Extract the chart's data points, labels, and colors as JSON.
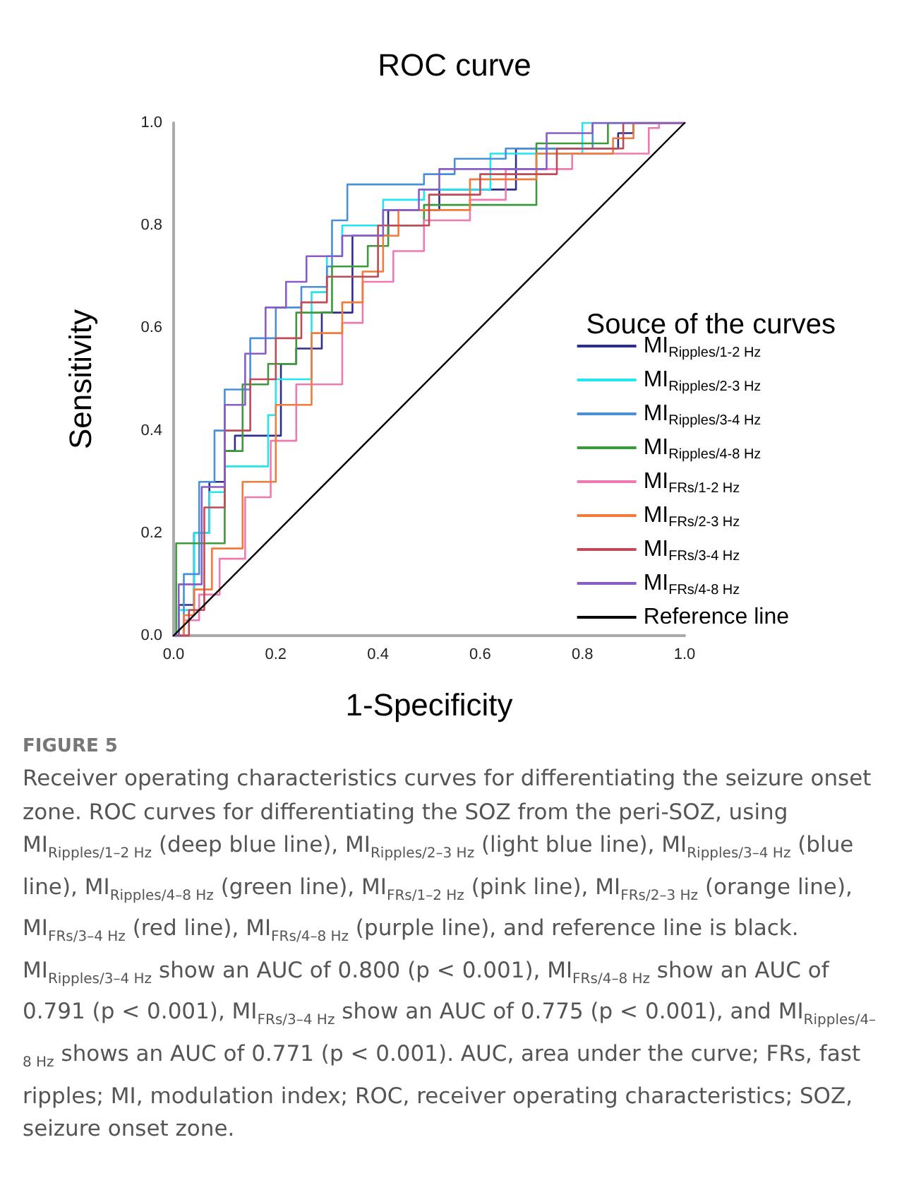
{
  "chart_data": {
    "type": "step",
    "title": "ROC curve",
    "xlabel": "1-Specificity",
    "ylabel": "Sensitivity",
    "legend_title": "Souce of the curves",
    "legend": "bottom right",
    "grid": false,
    "marker": "none",
    "line_style": "solid",
    "xlim": [
      0,
      1
    ],
    "ylim": [
      0,
      1
    ],
    "xticks": [
      {
        "value": 0,
        "label": "0.0"
      },
      {
        "value": 0.2,
        "label": "0.2"
      },
      {
        "value": 0.4,
        "label": "0.4"
      },
      {
        "value": 0.6,
        "label": "0.6"
      },
      {
        "value": 0.8,
        "label": "0.8"
      },
      {
        "value": 1,
        "label": "1.0"
      }
    ],
    "yticks": [
      {
        "value": 0,
        "label": "0.0"
      },
      {
        "value": 0.2,
        "label": "0.2"
      },
      {
        "value": 0.4,
        "label": "0.4"
      },
      {
        "value": 0.6,
        "label": "0.6"
      },
      {
        "value": 0.8,
        "label": "0.8"
      },
      {
        "value": 1,
        "label": "1.0"
      }
    ],
    "series": [
      {
        "name": "MI$_{Ripples/1-2 Hz}$",
        "color": "#2e2e8f",
        "x": [
          0,
          0.01,
          0.04,
          0.07,
          0.1,
          0.12,
          0.2,
          0.21,
          0.24,
          0.29,
          0.35,
          0.42,
          0.52,
          0.67,
          0.87,
          0.9,
          1
        ],
        "values": [
          0,
          0.06,
          0.2,
          0.3,
          0.36,
          0.39,
          0.39,
          0.53,
          0.56,
          0.63,
          0.78,
          0.83,
          0.87,
          0.95,
          0.98,
          1,
          1
        ]
      },
      {
        "name": "MI$_{Ripples/2-3 Hz}$",
        "color": "#22e5f0",
        "x": [
          0,
          0.01,
          0.04,
          0.07,
          0.1,
          0.185,
          0.2,
          0.27,
          0.3,
          0.33,
          0.41,
          0.49,
          0.62,
          0.8,
          1
        ],
        "values": [
          0,
          0.05,
          0.2,
          0.28,
          0.33,
          0.43,
          0.5,
          0.67,
          0.74,
          0.8,
          0.85,
          0.87,
          0.94,
          1,
          1
        ]
      },
      {
        "name": "MI$_{Ripples/3-4 Hz}$",
        "color": "#4a90d9",
        "x": [
          0,
          0.02,
          0.05,
          0.08,
          0.1,
          0.15,
          0.2,
          0.25,
          0.3,
          0.31,
          0.34,
          0.49,
          0.55,
          0.65,
          0.82,
          1
        ],
        "values": [
          0,
          0.12,
          0.3,
          0.4,
          0.48,
          0.58,
          0.64,
          0.68,
          0.72,
          0.81,
          0.88,
          0.9,
          0.93,
          0.95,
          1,
          1
        ]
      },
      {
        "name": "MI$_{Ripples/4-8 Hz}$",
        "color": "#3c9a3c",
        "x": [
          0,
          0.005,
          0.02,
          0.1,
          0.135,
          0.185,
          0.24,
          0.31,
          0.38,
          0.42,
          0.49,
          0.71,
          0.85,
          1
        ],
        "values": [
          0,
          0.18,
          0.18,
          0.36,
          0.49,
          0.53,
          0.63,
          0.72,
          0.76,
          0.8,
          0.84,
          0.96,
          1,
          1
        ]
      },
      {
        "name": "MI$_{FRs/1-2 Hz}$",
        "color": "#f07ab0",
        "x": [
          0,
          0.02,
          0.05,
          0.09,
          0.14,
          0.19,
          0.24,
          0.33,
          0.37,
          0.43,
          0.49,
          0.58,
          0.65,
          0.78,
          0.93,
          0.95,
          1
        ],
        "values": [
          0,
          0.03,
          0.08,
          0.15,
          0.27,
          0.38,
          0.49,
          0.61,
          0.69,
          0.75,
          0.81,
          0.85,
          0.91,
          0.94,
          0.99,
          1,
          1
        ]
      },
      {
        "name": "MI$_{FRs/2-3 Hz}$",
        "color": "#f47a3a",
        "x": [
          0,
          0.02,
          0.04,
          0.075,
          0.135,
          0.2,
          0.27,
          0.33,
          0.37,
          0.41,
          0.44,
          0.58,
          0.71,
          0.86,
          0.9,
          1
        ],
        "values": [
          0,
          0.04,
          0.09,
          0.17,
          0.3,
          0.45,
          0.59,
          0.65,
          0.71,
          0.78,
          0.83,
          0.89,
          0.94,
          0.97,
          1,
          1
        ]
      },
      {
        "name": "MI$_{FRs/3-4 Hz}$",
        "color": "#c04a55",
        "x": [
          0,
          0.03,
          0.06,
          0.1,
          0.15,
          0.2,
          0.25,
          0.3,
          0.4,
          0.5,
          0.6,
          0.75,
          0.88,
          1
        ],
        "values": [
          0,
          0.05,
          0.25,
          0.4,
          0.5,
          0.58,
          0.65,
          0.7,
          0.8,
          0.86,
          0.9,
          0.95,
          1,
          1
        ]
      },
      {
        "name": "MI$_{FRs/4-8 Hz}$",
        "color": "#8a5cc8",
        "x": [
          0,
          0.01,
          0.055,
          0.1,
          0.14,
          0.18,
          0.22,
          0.26,
          0.33,
          0.41,
          0.48,
          0.52,
          0.73,
          0.82,
          1
        ],
        "values": [
          0,
          0.1,
          0.29,
          0.45,
          0.55,
          0.64,
          0.69,
          0.74,
          0.78,
          0.83,
          0.87,
          0.91,
          0.98,
          1,
          1
        ]
      },
      {
        "name": "Reference line",
        "type": "line",
        "color": "#000000",
        "x": [
          0,
          1
        ],
        "values": [
          0,
          1
        ]
      }
    ],
    "annotations": [
      "FIGURE 5",
      "Receiver operating characteristics curves for differentiating the seizure onset zone. ROC curves for differentiating the SOZ from the peri-SOZ, using MI$_{Ripples/1–2 Hz}$ (deep blue line), MI$_{Ripples/2–3 Hz}$ (light blue line), MI$_{Ripples/3–4 Hz}$ (blue line), MI$_{Ripples/4–8 Hz}$ (green line), MI$_{FRs/1–2 Hz}$ (pink line), MI$_{FRs/2–3 Hz}$ (orange line), MI$_{FRs/3–4 Hz}$ (red line), MI$_{FRs/4–8 Hz}$ (purple line), and reference line is black. MI$_{Ripples/3–4 Hz}$ show an AUC of 0.800 (p < 0.001), MI$_{FRs/4–8 Hz}$ show an AUC of 0.791 (p < 0.001), MI$_{FRs/3–4 Hz}$ show an AUC of 0.775 (p < 0.001), and MI$_{Ripples/4–8 Hz}$ shows an AUC of 0.771 (p < 0.001). AUC, area under the curve; FRs, fast ripples; MI, modulation index; ROC, receiver operating characteristics; SOZ, seizure onset zone."
    ]
  }
}
